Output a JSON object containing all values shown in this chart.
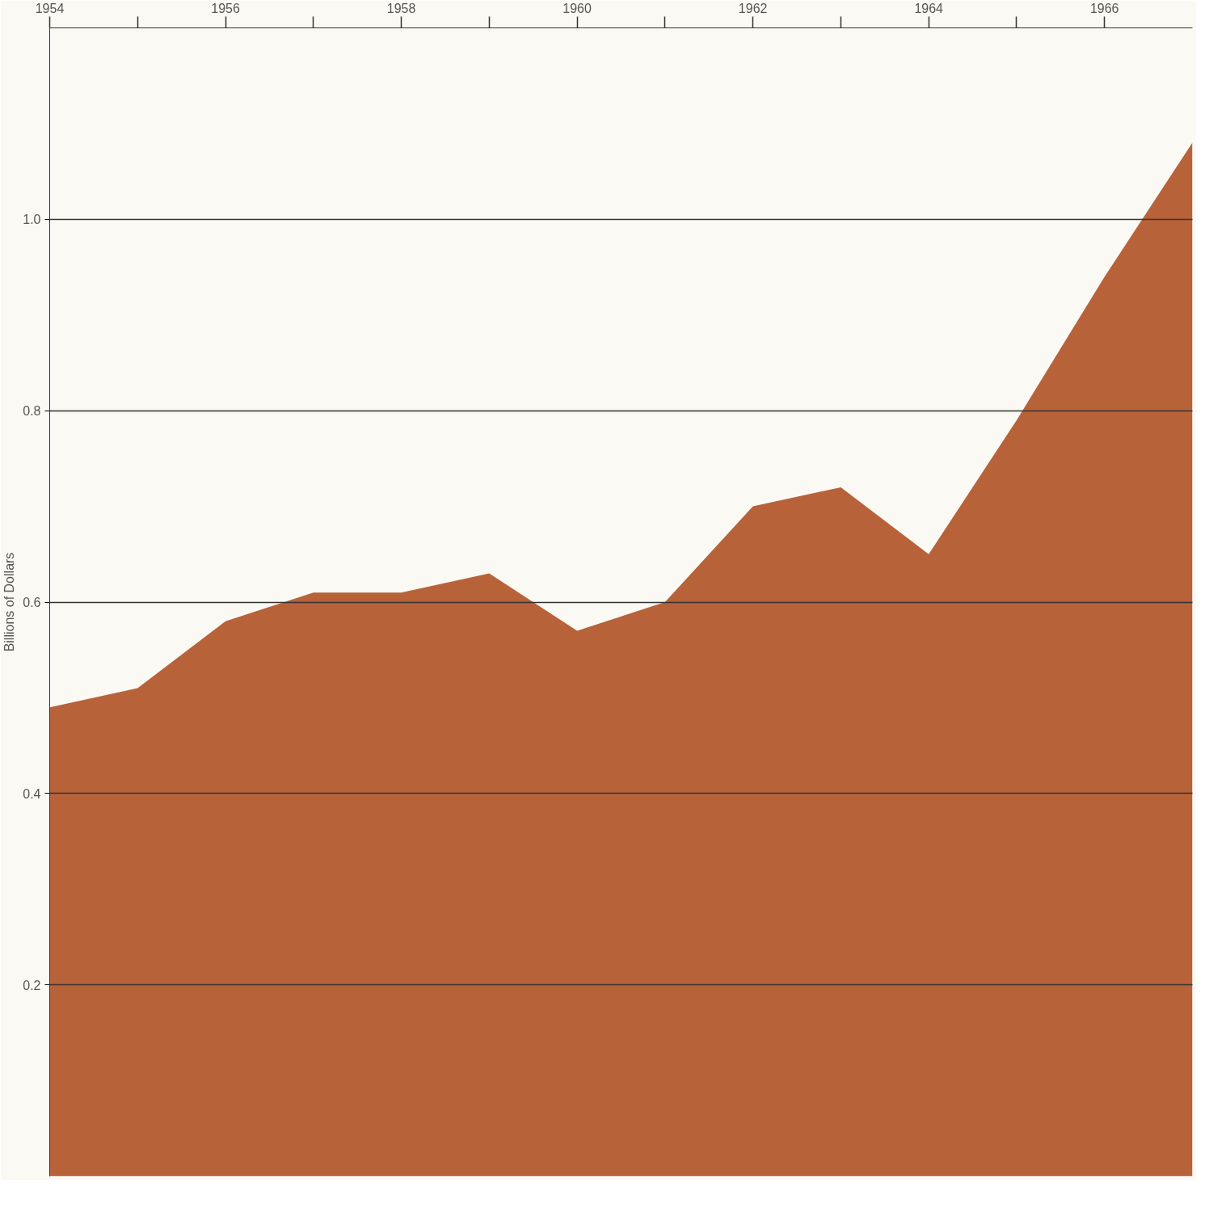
{
  "chart_data": {
    "type": "area",
    "ylabel": "Billions of Dollars",
    "x": [
      1954,
      1955,
      1956,
      1957,
      1958,
      1959,
      1960,
      1961,
      1962,
      1963,
      1964,
      1965,
      1966,
      1967
    ],
    "series": [
      {
        "color": "#b8623a",
        "values": [
          0.49,
          0.51,
          0.58,
          0.61,
          0.61,
          0.63,
          0.57,
          0.6,
          0.7,
          0.72,
          0.65,
          0.79,
          0.94,
          1.08
        ]
      }
    ],
    "xlim": [
      1954,
      1967
    ],
    "xticks": [
      1954,
      {
        "value": 1955,
        "label": null
      },
      1956,
      {
        "value": 1957,
        "label": null
      },
      1958,
      {
        "value": 1959,
        "label": null
      },
      1960,
      {
        "value": 1961,
        "label": null
      },
      1962,
      {
        "value": 1963,
        "label": null
      },
      1964,
      {
        "value": 1965,
        "label": null
      },
      1966
    ],
    "ylim": [
      0,
      1.2
    ],
    "yticks": [
      0.2,
      0.4,
      0.6,
      0.8,
      {
        "value": 1.0,
        "label": "1.0"
      }
    ],
    "grid": "y"
  }
}
